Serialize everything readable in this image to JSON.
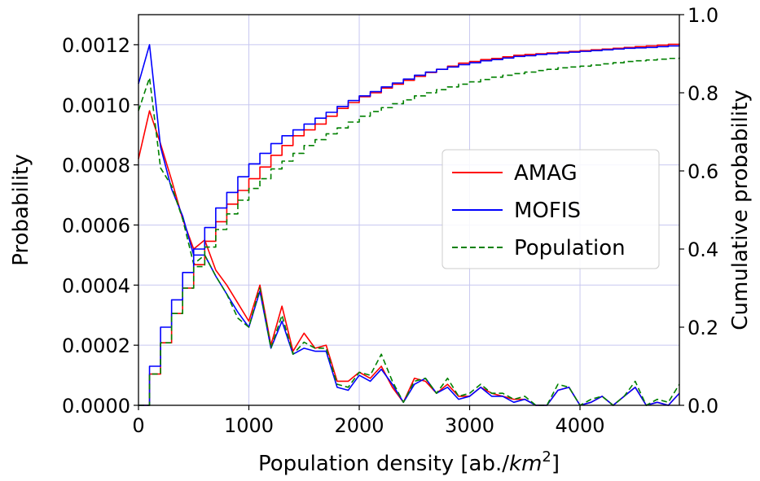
{
  "chart_data": {
    "type": "line",
    "xlabel": "Population density [ab./km²]",
    "xlabel_prefix": "Population density [ab./",
    "xlabel_unit": "km",
    "xlabel_exp": "2",
    "xlabel_suffix": "]",
    "ylabel_left": "Probability",
    "ylabel_right": "Cumulative probability",
    "xlim": [
      0,
      4900
    ],
    "ylim_left": [
      0,
      0.0013
    ],
    "ylim_right": [
      0,
      1.0
    ],
    "x_ticks": [
      0,
      1000,
      2000,
      3000,
      4000
    ],
    "x_tick_labels": [
      "0",
      "1000",
      "2000",
      "3000",
      "4000"
    ],
    "y_left_ticks": [
      0,
      0.0002,
      0.0004,
      0.0006,
      0.0008,
      0.001,
      0.0012
    ],
    "y_left_tick_labels": [
      "0.0000",
      "0.0002",
      "0.0004",
      "0.0006",
      "0.0008",
      "0.0010",
      "0.0012"
    ],
    "y_right_ticks": [
      0,
      0.2,
      0.4,
      0.6,
      0.8,
      1.0
    ],
    "y_right_tick_labels": [
      "0.0",
      "0.2",
      "0.4",
      "0.6",
      "0.8",
      "1.0"
    ],
    "grid": true,
    "legend_position": "center-right",
    "colors": {
      "AMAG": "#ff0000",
      "MOFIS": "#0000ff",
      "Population": "#008000"
    },
    "x": [
      0,
      100,
      200,
      300,
      400,
      500,
      600,
      700,
      800,
      900,
      1000,
      1100,
      1200,
      1300,
      1400,
      1500,
      1600,
      1700,
      1800,
      1900,
      2000,
      2100,
      2200,
      2300,
      2400,
      2500,
      2600,
      2700,
      2800,
      2900,
      3000,
      3100,
      3200,
      3300,
      3400,
      3500,
      3600,
      3700,
      3800,
      3900,
      4000,
      4100,
      4200,
      4300,
      4400,
      4500,
      4600,
      4700,
      4800,
      4900
    ],
    "series": [
      {
        "name": "AMAG",
        "axis": "left",
        "style": "solid",
        "values": [
          0.00082,
          0.00098,
          0.00087,
          0.00075,
          0.00062,
          0.00052,
          0.00055,
          0.00045,
          0.0004,
          0.00034,
          0.00028,
          0.0004,
          0.0002,
          0.00033,
          0.00018,
          0.00024,
          0.00019,
          0.0002,
          8e-05,
          8e-05,
          0.00011,
          9e-05,
          0.00013,
          6e-05,
          1e-05,
          9e-05,
          8e-05,
          4e-05,
          7e-05,
          3e-05,
          3e-05,
          6e-05,
          4e-05,
          3e-05,
          2e-05,
          2e-05,
          0.0,
          0.0,
          5e-05,
          6e-05,
          0.0,
          1e-05,
          3e-05,
          0.0,
          3e-05,
          6e-05,
          0.0,
          1e-05,
          0.0,
          4e-05
        ]
      },
      {
        "name": "MOFIS",
        "axis": "left",
        "style": "solid",
        "values": [
          0.00107,
          0.0012,
          0.00086,
          0.00072,
          0.00063,
          0.0005,
          0.0005,
          0.00043,
          0.00037,
          0.00031,
          0.00026,
          0.00038,
          0.00019,
          0.00028,
          0.00017,
          0.00019,
          0.00018,
          0.00018,
          6e-05,
          5e-05,
          0.0001,
          8e-05,
          0.00012,
          7e-05,
          1e-05,
          7e-05,
          9e-05,
          4e-05,
          6e-05,
          2e-05,
          3e-05,
          6e-05,
          3e-05,
          3e-05,
          1e-05,
          2e-05,
          0.0,
          0.0,
          5e-05,
          6e-05,
          0.0,
          1e-05,
          3e-05,
          0.0,
          3e-05,
          6e-05,
          0.0,
          1e-05,
          0.0,
          4e-05
        ]
      },
      {
        "name": "Population",
        "axis": "left",
        "style": "dashed",
        "values": [
          0.00098,
          0.00109,
          0.00079,
          0.00073,
          0.00062,
          0.00047,
          0.0005,
          0.00043,
          0.00037,
          0.00029,
          0.00026,
          0.00039,
          0.00019,
          0.0003,
          0.00017,
          0.00021,
          0.00019,
          0.00019,
          7e-05,
          6e-05,
          0.00011,
          0.0001,
          0.00017,
          8e-05,
          1e-05,
          8e-05,
          9e-05,
          4e-05,
          9e-05,
          3e-05,
          4e-05,
          7e-05,
          4e-05,
          4e-05,
          2e-05,
          3e-05,
          0.0,
          0.0,
          7e-05,
          6e-05,
          0.0,
          2e-05,
          3e-05,
          0.0,
          3e-05,
          8e-05,
          0.0,
          2e-05,
          1e-05,
          7e-05
        ]
      },
      {
        "axis": "right",
        "style": "solid",
        "legend": false,
        "color_of": "AMAG",
        "values": [
          0.0,
          0.08,
          0.16,
          0.235,
          0.3,
          0.36,
          0.42,
          0.47,
          0.515,
          0.55,
          0.58,
          0.61,
          0.64,
          0.665,
          0.69,
          0.705,
          0.72,
          0.74,
          0.76,
          0.775,
          0.79,
          0.8,
          0.812,
          0.822,
          0.832,
          0.842,
          0.852,
          0.86,
          0.868,
          0.876,
          0.88,
          0.885,
          0.888,
          0.892,
          0.896,
          0.898,
          0.9,
          0.902,
          0.904,
          0.906,
          0.908,
          0.91,
          0.912,
          0.914,
          0.916,
          0.918,
          0.92,
          0.922,
          0.924,
          0.926
        ]
      },
      {
        "axis": "right",
        "style": "solid",
        "legend": false,
        "color_of": "MOFIS",
        "values": [
          0.0,
          0.1,
          0.2,
          0.27,
          0.34,
          0.4,
          0.455,
          0.505,
          0.545,
          0.585,
          0.618,
          0.645,
          0.67,
          0.69,
          0.705,
          0.72,
          0.735,
          0.75,
          0.765,
          0.78,
          0.792,
          0.803,
          0.815,
          0.825,
          0.835,
          0.845,
          0.853,
          0.86,
          0.866,
          0.872,
          0.877,
          0.882,
          0.885,
          0.889,
          0.893,
          0.895,
          0.898,
          0.9,
          0.902,
          0.904,
          0.906,
          0.908,
          0.91,
          0.912,
          0.914,
          0.915,
          0.916,
          0.918,
          0.92,
          0.922
        ]
      },
      {
        "axis": "right",
        "style": "dashed",
        "legend": false,
        "color_of": "Population",
        "values": [
          0.0,
          0.08,
          0.16,
          0.235,
          0.3,
          0.355,
          0.405,
          0.45,
          0.49,
          0.525,
          0.555,
          0.58,
          0.605,
          0.625,
          0.645,
          0.665,
          0.68,
          0.695,
          0.71,
          0.725,
          0.74,
          0.752,
          0.762,
          0.772,
          0.782,
          0.792,
          0.8,
          0.808,
          0.815,
          0.822,
          0.828,
          0.834,
          0.84,
          0.845,
          0.849,
          0.853,
          0.857,
          0.86,
          0.864,
          0.866,
          0.868,
          0.871,
          0.874,
          0.877,
          0.88,
          0.882,
          0.884,
          0.886,
          0.888,
          0.89
        ]
      }
    ]
  }
}
